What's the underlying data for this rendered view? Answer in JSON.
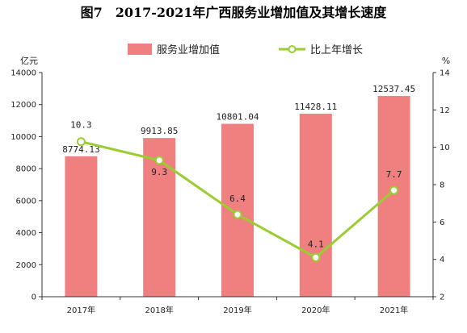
{
  "chart_data": {
    "type": "bar",
    "title": "图7　2017-2021年广西服务业增加值及其增长速度",
    "categories": [
      "2017年",
      "2018年",
      "2019年",
      "2020年",
      "2021年"
    ],
    "series": [
      {
        "name": "服务业增加值",
        "type": "bar",
        "axis": "left",
        "values": [
          8774.13,
          9913.85,
          10801.04,
          11428.11,
          12537.45
        ],
        "labels": [
          "8774.13",
          "9913.85",
          "10801.04",
          "11428.11",
          "12537.45"
        ],
        "color": "#f08080"
      },
      {
        "name": "比上年增长",
        "type": "line",
        "axis": "right",
        "values": [
          10.3,
          9.3,
          6.4,
          4.1,
          7.7
        ],
        "labels": [
          "10.3",
          "9.3",
          "6.4",
          "4.1",
          "7.7"
        ],
        "color": "#9acd32"
      }
    ],
    "y_left": {
      "label": "亿元",
      "ylim": [
        0,
        14000
      ],
      "ticks": [
        "0",
        "2000",
        "4000",
        "6000",
        "8000",
        "10000",
        "12000",
        "14000"
      ]
    },
    "y_right": {
      "label": "%",
      "ylim": [
        2,
        14
      ],
      "ticks": [
        "2",
        "4",
        "6",
        "8",
        "10",
        "12",
        "14"
      ]
    },
    "legend_position": "top",
    "grid": false
  }
}
